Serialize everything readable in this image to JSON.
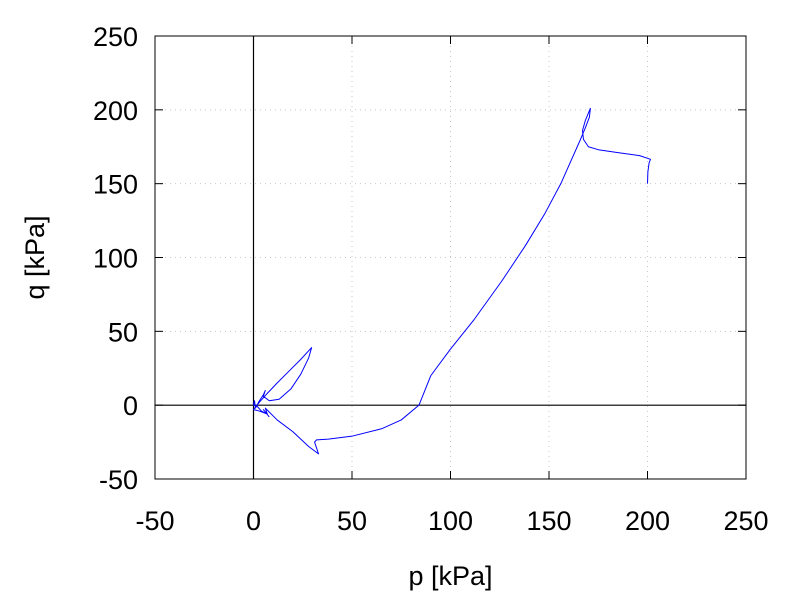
{
  "chart_data": {
    "type": "line",
    "title": "",
    "xlabel": "p [kPa]",
    "ylabel": "q [kPa]",
    "xlim": [
      -50,
      250
    ],
    "ylim": [
      -50,
      250
    ],
    "xticks": [
      -50,
      0,
      50,
      100,
      150,
      200,
      250
    ],
    "yticks": [
      -50,
      0,
      50,
      100,
      150,
      200,
      250
    ],
    "grid": true,
    "zero_lines": true,
    "series": [
      {
        "color": "#0000ff",
        "points": [
          [
            200,
            150
          ],
          [
            200.2,
            158
          ],
          [
            200.8,
            164
          ],
          [
            201.5,
            166.5
          ],
          [
            196,
            169
          ],
          [
            185,
            171
          ],
          [
            175,
            173
          ],
          [
            170,
            175
          ],
          [
            167.5,
            180
          ],
          [
            167,
            186
          ],
          [
            168.5,
            193
          ],
          [
            171,
            201
          ],
          [
            170.5,
            195
          ],
          [
            168.5,
            188
          ],
          [
            166,
            180
          ],
          [
            162,
            168
          ],
          [
            156,
            150
          ],
          [
            148,
            130
          ],
          [
            138,
            108
          ],
          [
            126,
            84
          ],
          [
            112,
            58
          ],
          [
            100,
            38
          ],
          [
            90,
            20
          ],
          [
            84,
            0
          ],
          [
            75,
            -10
          ],
          [
            65,
            -16
          ],
          [
            50,
            -21
          ],
          [
            38,
            -23
          ],
          [
            32,
            -23.5
          ],
          [
            31,
            -25
          ],
          [
            33,
            -33
          ],
          [
            28,
            -28
          ],
          [
            20,
            -18
          ],
          [
            12,
            -10
          ],
          [
            6,
            -2
          ],
          [
            7,
            -6
          ],
          [
            4,
            -4
          ],
          [
            2,
            -1
          ],
          [
            0,
            0
          ],
          [
            0.5,
            3
          ],
          [
            1,
            -2
          ],
          [
            3,
            3
          ],
          [
            5,
            7
          ],
          [
            6,
            10
          ],
          [
            5,
            6
          ],
          [
            8,
            3
          ],
          [
            13,
            4
          ],
          [
            19,
            11
          ],
          [
            24,
            21
          ],
          [
            28,
            32
          ],
          [
            29.5,
            39
          ],
          [
            24,
            31
          ],
          [
            18,
            23
          ],
          [
            12,
            15
          ],
          [
            7,
            8
          ],
          [
            3,
            2
          ],
          [
            0,
            -3
          ],
          [
            3,
            -4
          ],
          [
            7,
            -6
          ],
          [
            5,
            -3
          ],
          [
            8,
            -8
          ]
        ]
      }
    ]
  }
}
